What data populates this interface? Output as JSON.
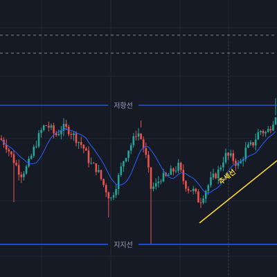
{
  "chart_data": {
    "type": "candlestick",
    "title": "",
    "xlabel": "",
    "ylabel": "",
    "grid": true,
    "ylim": [
      0,
      100
    ],
    "colors": {
      "up": "#26a69a",
      "down": "#ef5350",
      "ma": "#2962ff",
      "level": "#2962ff",
      "trend": "#fdd835",
      "dashed": "#8a8f99",
      "background": "#161a25"
    },
    "levels": {
      "resistance": {
        "label": "저항선",
        "value": 62.0
      },
      "support": {
        "label": "지지선",
        "value": 11.8
      }
    },
    "dashed_levels": [
      87.3,
      80.8
    ],
    "trendline": {
      "label": "추세선",
      "start": [
        72,
        19.5
      ],
      "end": [
        100,
        42.0
      ]
    },
    "candles": [],
    "ma_period": 10
  }
}
